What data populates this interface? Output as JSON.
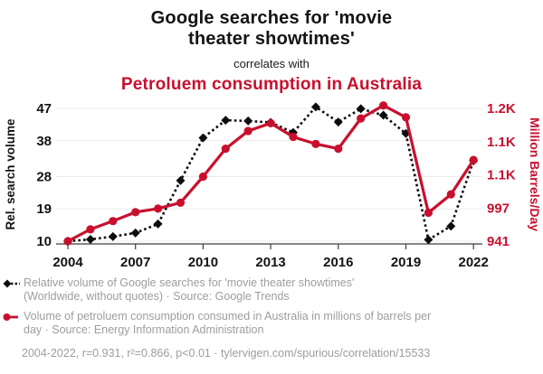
{
  "header": {
    "title_line1": "Google searches for 'movie",
    "title_line2": "theater showtimes'",
    "connector": "correlates with",
    "subtitle": "Petroluem consumption in Australia"
  },
  "colors": {
    "accent_red": "#c8102e",
    "series_black": "#0d0d0d",
    "legend_gray": "#9d9d9d",
    "gridline": "#ebebeb",
    "axis": "#3f3f3f"
  },
  "chart_data": {
    "type": "line",
    "x": [
      2004,
      2005,
      2006,
      2007,
      2008,
      2009,
      2010,
      2011,
      2012,
      2013,
      2014,
      2015,
      2016,
      2017,
      2018,
      2019,
      2020,
      2021,
      2022
    ],
    "x_ticks": [
      2004,
      2007,
      2010,
      2013,
      2016,
      2019,
      2022
    ],
    "left_axis": {
      "label": "Rel. search volume",
      "ticks": [
        10,
        19,
        28,
        38,
        47
      ],
      "tick_labels": [
        "10",
        "19",
        "28",
        "38",
        "47"
      ],
      "range": [
        10,
        47.4
      ]
    },
    "right_axis": {
      "label": "Million Barrels/Day",
      "ticks": [
        941,
        997,
        1053,
        1109,
        1165
      ],
      "tick_labels": [
        "941",
        "997",
        "1.1K",
        "1.1K",
        "1.2K"
      ],
      "range": [
        941,
        1170
      ]
    },
    "grid": true,
    "legend_position": "bottom",
    "series": [
      {
        "name": "Relative volume of Google searches for 'movie theater showtimes'",
        "axis": "left",
        "marker": "diamond",
        "line_style": "dashed",
        "color": "#0d0d0d",
        "values": [
          10,
          10.5,
          11.3,
          12.3,
          14.8,
          26.9,
          38.8,
          43.7,
          43.5,
          43.1,
          40.3,
          47.4,
          43.2,
          46.9,
          45.1,
          40,
          10.4,
          14.2,
          32.4
        ]
      },
      {
        "name": "Volume of petroluem consumption consumed in Australia",
        "axis": "right",
        "marker": "circle",
        "line_style": "solid",
        "color": "#c8102e",
        "values": [
          941,
          961,
          975,
          990,
          996,
          1006,
          1050,
          1097,
          1127,
          1140,
          1117,
          1105,
          1097,
          1148,
          1170,
          1150,
          989,
          1020,
          1078
        ]
      }
    ]
  },
  "legend": {
    "entries": [
      {
        "lines": [
          "Relative volume of Google searches for 'movie theater showtimes'",
          "(Worldwide, without quotes) · Source: Google Trends"
        ]
      },
      {
        "lines": [
          "Volume of petroluem consumption consumed in Australia in millions of barrels per",
          "day · Source: Energy Information Administration"
        ]
      }
    ],
    "footer": "2004-2022, r=0.931, r²=0.866, p<0.01 · tylervigen.com/spurious/correlation/15533"
  }
}
